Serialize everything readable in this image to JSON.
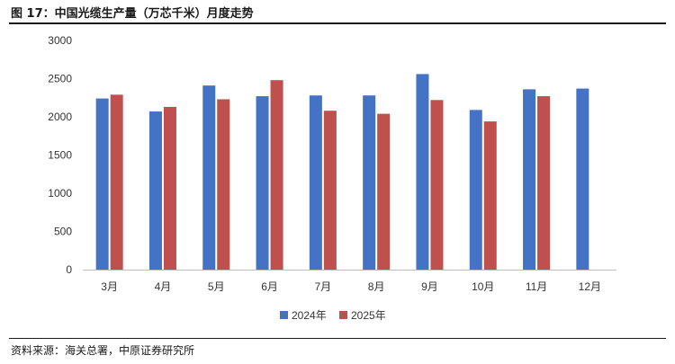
{
  "header": {
    "title": "图 17：中国光缆生产量（万芯千米）月度走势"
  },
  "footer": {
    "source": "资料来源：海关总署，中原证券研究所"
  },
  "colors": {
    "series_2024": "#4472C4",
    "series_2025": "#C0504D",
    "axis": "#bfbfbf"
  },
  "chart_data": {
    "type": "bar",
    "title": "中国光缆生产量（万芯千米）月度走势",
    "xlabel": "",
    "ylabel": "",
    "ylim": [
      0,
      3000
    ],
    "yticks": [
      0,
      500,
      1000,
      1500,
      2000,
      2500,
      3000
    ],
    "grid": false,
    "legend_position": "bottom",
    "categories": [
      "3月",
      "4月",
      "5月",
      "6月",
      "7月",
      "8月",
      "9月",
      "10月",
      "11月",
      "12月"
    ],
    "series": [
      {
        "name": "2024年",
        "values": [
          2240,
          2070,
          2410,
          2270,
          2280,
          2280,
          2560,
          2090,
          2360,
          2370
        ]
      },
      {
        "name": "2025年",
        "values": [
          2290,
          2130,
          2230,
          2480,
          2080,
          2040,
          2220,
          1940,
          2270,
          null
        ]
      }
    ]
  }
}
